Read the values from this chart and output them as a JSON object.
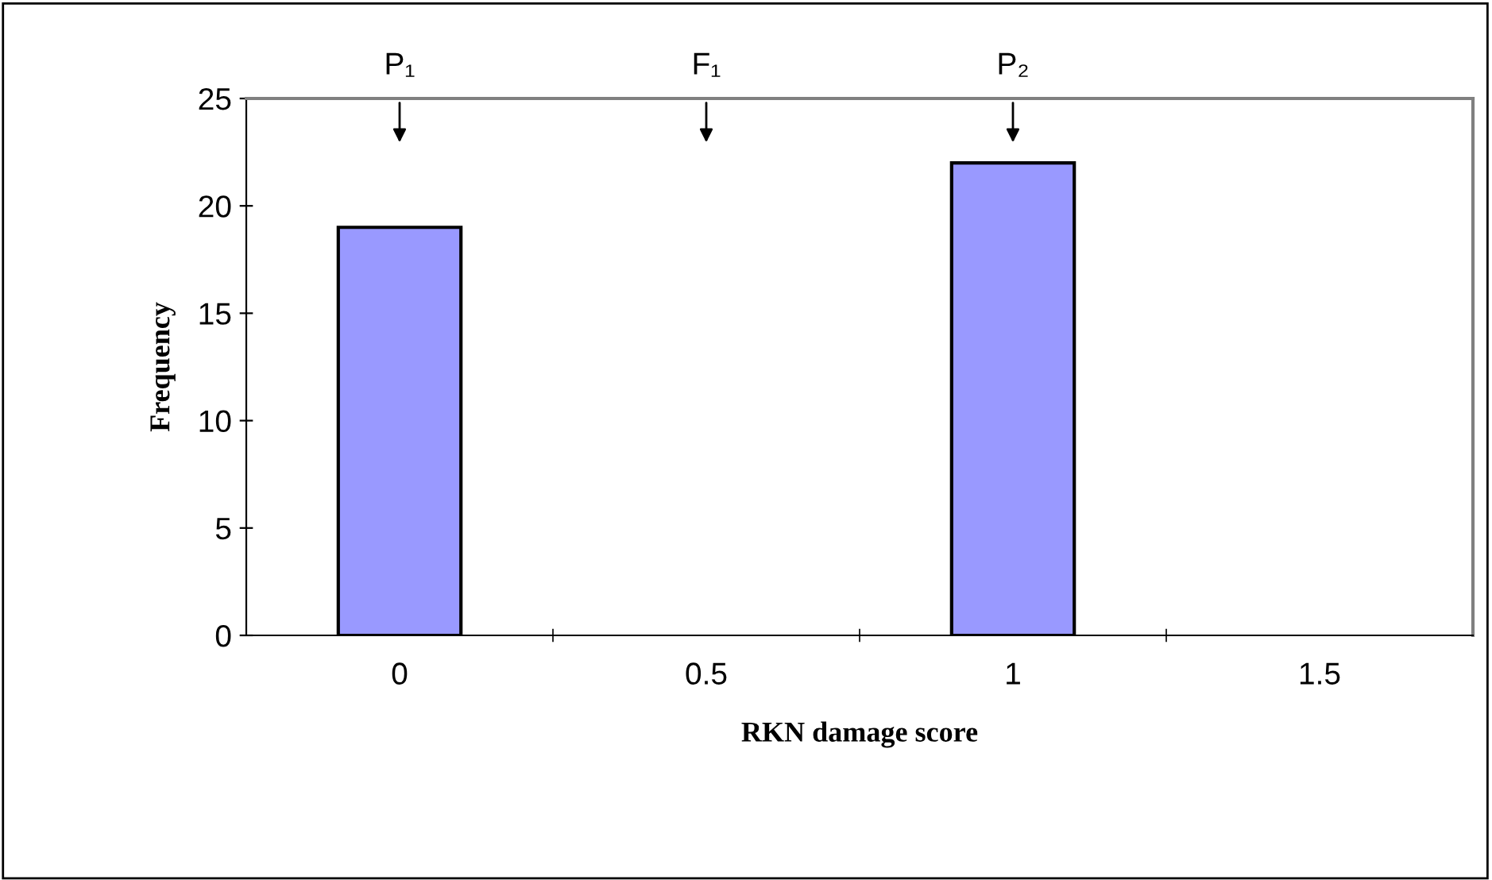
{
  "chart_data": {
    "type": "bar",
    "xlabel": "RKN damage score",
    "ylabel": "Frequency",
    "categories": [
      "0",
      "0.5",
      "1",
      "1.5"
    ],
    "values": [
      19,
      0,
      22,
      0
    ],
    "color": "#9999ff",
    "ylim": [
      0,
      25
    ],
    "yticks": [
      0,
      5,
      10,
      15,
      20,
      25
    ],
    "grid": false,
    "legend": false,
    "annotations": [
      "P₁",
      "F₁",
      "P₂"
    ]
  }
}
